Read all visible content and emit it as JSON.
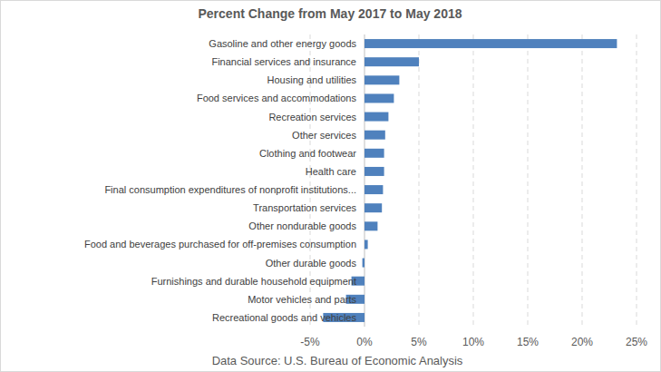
{
  "chart_data": {
    "type": "bar",
    "orientation": "horizontal",
    "title": "Percent Change from May 2017 to May 2018",
    "source": "Data Source: U.S. Bureau of Economic Analysis",
    "categories": [
      "Gasoline and other energy goods",
      "Financial services and insurance",
      "Housing and utilities",
      "Food services and accommodations",
      "Recreation services",
      "Other services",
      "Clothing and footwear",
      "Health care",
      "Final consumption expenditures of nonprofit institutions...",
      "Transportation services",
      "Other nondurable goods",
      "Food and beverages purchased for off-premises consumption",
      "Other durable goods",
      "Furnishings and durable household equipment",
      "Motor vehicles and parts",
      "Recreational goods and vehicles"
    ],
    "values": [
      23.2,
      5.0,
      3.2,
      2.7,
      2.2,
      1.9,
      1.8,
      1.8,
      1.7,
      1.6,
      1.2,
      0.3,
      -0.2,
      -1.2,
      -1.7,
      -3.8
    ],
    "color": "#4f81bd",
    "xlim": [
      -5,
      25
    ],
    "xticks": [
      {
        "value": -5,
        "label": "-5%"
      },
      {
        "value": 0,
        "label": "0%"
      },
      {
        "value": 5,
        "label": "5%"
      },
      {
        "value": 10,
        "label": "10%"
      },
      {
        "value": 15,
        "label": "15%"
      },
      {
        "value": 20,
        "label": "20%"
      },
      {
        "value": 25,
        "label": "25%"
      }
    ],
    "grid": true
  }
}
